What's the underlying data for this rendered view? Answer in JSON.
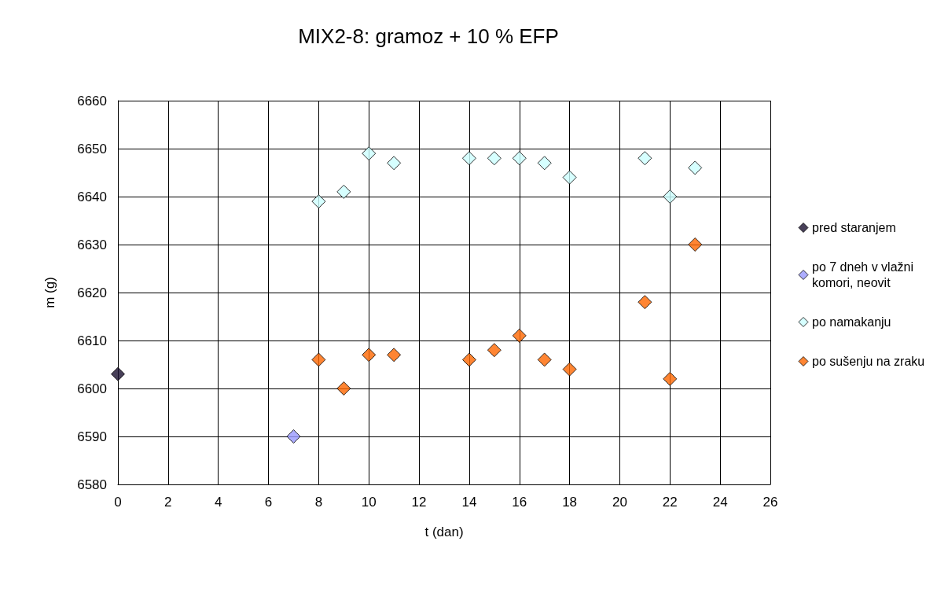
{
  "chart_data": {
    "type": "scatter",
    "title": "MIX2-8: gramoz + 10 % EFP",
    "xlabel": "t (dan)",
    "ylabel": "m (g)",
    "xlim": [
      0,
      26
    ],
    "xticks": [
      0,
      2,
      4,
      6,
      8,
      10,
      12,
      14,
      16,
      18,
      20,
      22,
      24,
      26
    ],
    "ylim": [
      6580,
      6660
    ],
    "yticks": [
      6580,
      6590,
      6600,
      6610,
      6620,
      6630,
      6640,
      6650,
      6660
    ],
    "grid": true,
    "legend": "right",
    "marker": "diamond",
    "series": [
      {
        "name": "pred staranjem",
        "color": "#1a1030",
        "x": [
          0
        ],
        "values": [
          6603
        ]
      },
      {
        "name": "po 7 dneh v vlažni komori, neovit",
        "color": "#9999ff",
        "x": [
          7
        ],
        "values": [
          6590
        ]
      },
      {
        "name": "po namakanju",
        "color": "#ccffff",
        "x": [
          8,
          9,
          10,
          11,
          14,
          15,
          16,
          17,
          18,
          21,
          22,
          23
        ],
        "values": [
          6639,
          6641,
          6649,
          6647,
          6648,
          6648,
          6648,
          6647,
          6644,
          6648,
          6640,
          6646
        ]
      },
      {
        "name": "po sušenju na zraku",
        "color": "#ff6600",
        "x": [
          8,
          9,
          10,
          11,
          14,
          15,
          16,
          17,
          18,
          21,
          22,
          23
        ],
        "values": [
          6606,
          6600,
          6607,
          6607,
          6606,
          6608,
          6611,
          6606,
          6604,
          6618,
          6602,
          6630
        ]
      }
    ]
  }
}
